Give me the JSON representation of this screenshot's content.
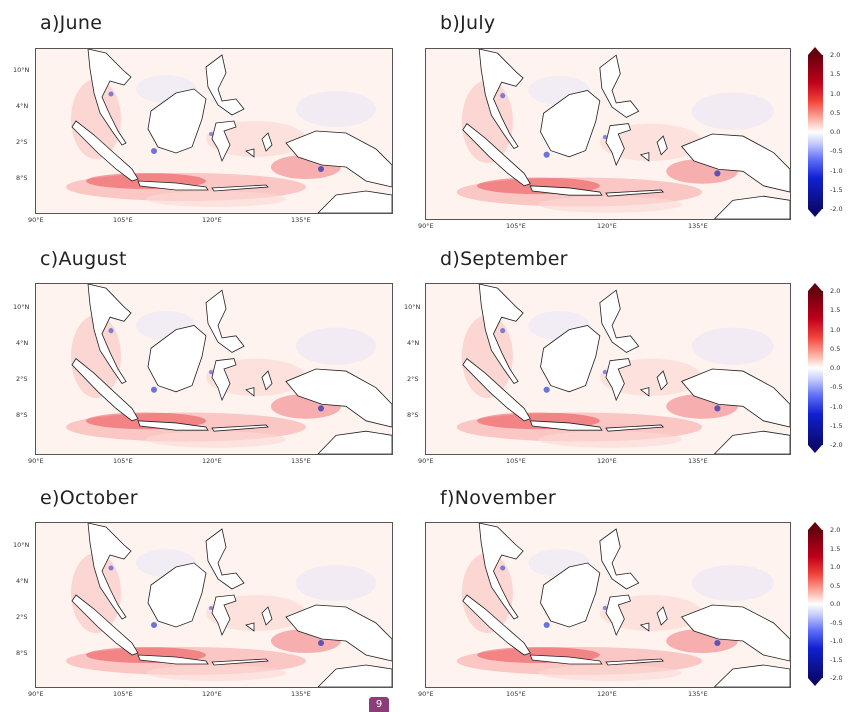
{
  "panels": [
    {
      "title": "a)June"
    },
    {
      "title": "b)July"
    },
    {
      "title": "c)August"
    },
    {
      "title": "d)September"
    },
    {
      "title": "e)October"
    },
    {
      "title": "f)November"
    }
  ],
  "axes": {
    "lat_labels": [
      "10°N",
      "4°N",
      "2°S",
      "8°S"
    ],
    "lon_labels": [
      "90°E",
      "105°E",
      "120°E",
      "135°E"
    ]
  },
  "colorbar": {
    "labels": [
      "2.0",
      "1.5",
      "1.0",
      "0.5",
      "0.0",
      "-0.5",
      "-1.0",
      "-1.5",
      "-2.0"
    ],
    "range": [
      -2.0,
      2.0
    ],
    "colors": {
      "max": "#67000d",
      "positive": "#e8202a",
      "zero": "#ffffff",
      "negative": "#1020d0",
      "min": "#0a0a6e"
    }
  },
  "badge": {
    "label": "9"
  }
}
